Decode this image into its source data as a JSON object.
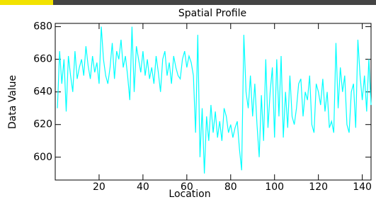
{
  "chart_data": {
    "type": "line",
    "title": "Spatial Profile",
    "x_label": "Location",
    "y_label": "Data Value",
    "x": [
      1,
      2,
      3,
      4,
      5,
      6,
      7,
      8,
      9,
      10,
      11,
      12,
      13,
      14,
      15,
      16,
      17,
      18,
      19,
      20,
      21,
      22,
      23,
      24,
      25,
      26,
      27,
      28,
      29,
      30,
      31,
      32,
      33,
      34,
      35,
      36,
      37,
      38,
      39,
      40,
      41,
      42,
      43,
      44,
      45,
      46,
      47,
      48,
      49,
      50,
      51,
      52,
      53,
      54,
      55,
      56,
      57,
      58,
      59,
      60,
      61,
      62,
      63,
      64,
      65,
      66,
      67,
      68,
      69,
      70,
      71,
      72,
      73,
      74,
      75,
      76,
      77,
      78,
      79,
      80,
      81,
      82,
      83,
      84,
      85,
      86,
      87,
      88,
      89,
      90,
      91,
      92,
      93,
      94,
      95,
      96,
      97,
      98,
      99,
      100,
      101,
      102,
      103,
      104,
      105,
      106,
      107,
      108,
      109,
      110,
      111,
      112,
      113,
      114,
      115,
      116,
      117,
      118,
      119,
      120,
      121,
      122,
      123,
      124,
      125,
      126,
      127,
      128,
      129,
      130,
      131,
      132,
      133,
      134,
      135,
      136,
      137,
      138,
      139,
      140,
      141,
      142,
      143,
      144
    ],
    "series": [
      {
        "color": "#00ffff",
        "values": [
          630,
          665,
          645,
          660,
          628,
          662,
          650,
          640,
          665,
          648,
          655,
          660,
          650,
          668,
          656,
          648,
          662,
          652,
          658,
          645,
          680,
          660,
          650,
          645,
          655,
          670,
          648,
          665,
          660,
          672,
          655,
          662,
          650,
          635,
          680,
          640,
          668,
          660,
          652,
          665,
          650,
          660,
          648,
          655,
          645,
          662,
          652,
          640,
          660,
          665,
          650,
          658,
          645,
          662,
          655,
          650,
          648,
          660,
          665,
          655,
          662,
          658,
          650,
          615,
          675,
          600,
          630,
          590,
          625,
          610,
          632,
          615,
          628,
          612,
          622,
          610,
          630,
          625,
          615,
          620,
          612,
          618,
          622,
          605,
          592,
          675,
          640,
          630,
          650,
          625,
          645,
          620,
          600,
          638,
          610,
          660,
          618,
          640,
          655,
          612,
          660,
          625,
          662,
          612,
          640,
          618,
          650,
          625,
          620,
          630,
          645,
          648,
          625,
          640,
          635,
          650,
          620,
          615,
          645,
          640,
          632,
          648,
          628,
          640,
          618,
          622,
          615,
          670,
          630,
          655,
          640,
          650,
          620,
          615,
          640,
          645,
          618,
          672,
          650,
          635,
          650,
          628,
          660,
          632
        ]
      }
    ],
    "xlim": [
      0,
      144
    ],
    "ylim": [
      586,
      682
    ],
    "xticks": [
      20,
      40,
      60,
      80,
      100,
      120,
      140
    ],
    "yticks": [
      600,
      620,
      640,
      660,
      680
    ]
  }
}
